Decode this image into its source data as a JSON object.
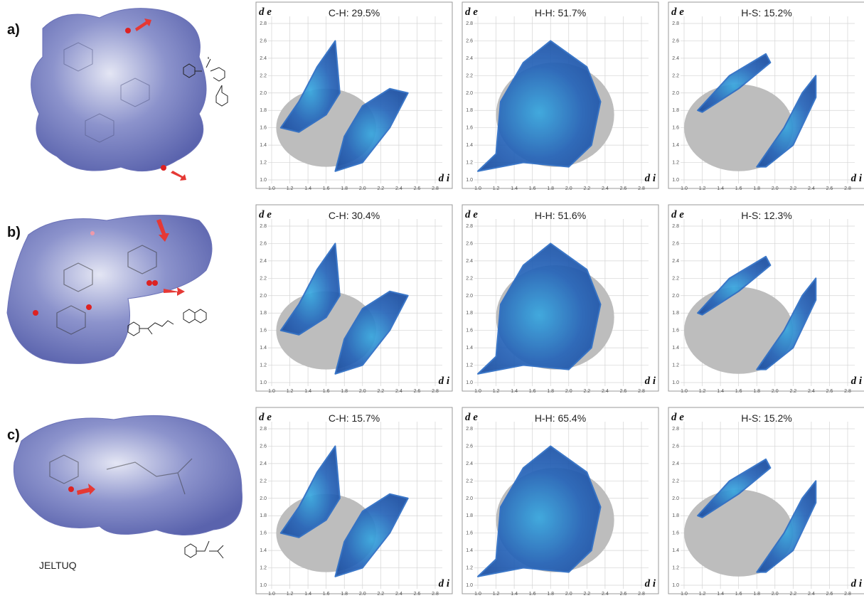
{
  "axis_ticks": [
    {
      "value": 1.0,
      "label": "1.0"
    },
    {
      "value": 1.2,
      "label": "1.2"
    },
    {
      "value": 1.4,
      "label": "1.4"
    },
    {
      "value": 1.6,
      "label": "1.6"
    },
    {
      "value": 1.8,
      "label": "1.8"
    },
    {
      "value": 2.0,
      "label": "2.0"
    },
    {
      "value": 2.2,
      "label": "2.2"
    },
    {
      "value": 2.4,
      "label": "2.4"
    },
    {
      "value": 2.6,
      "label": "2.6"
    },
    {
      "value": 2.8,
      "label": "2.8"
    }
  ],
  "y_axis_label": "d e",
  "x_axis_label": "d i",
  "rows": [
    {
      "label": "a)",
      "plots": [
        {
          "title": "C-H: 29.5%"
        },
        {
          "title": "H-H: 51.7%"
        },
        {
          "title": "H-S: 15.2%"
        }
      ]
    },
    {
      "label": "b)",
      "plots": [
        {
          "title": "C-H: 30.4%"
        },
        {
          "title": "H-H: 51.6%"
        },
        {
          "title": "H-S: 12.3%"
        }
      ]
    },
    {
      "label": "c)",
      "compound": "JELTUQ",
      "plots": [
        {
          "title": "C-H: 15.7%"
        },
        {
          "title": "H-H: 65.4%"
        },
        {
          "title": "H-S: 15.2%"
        }
      ]
    }
  ]
}
